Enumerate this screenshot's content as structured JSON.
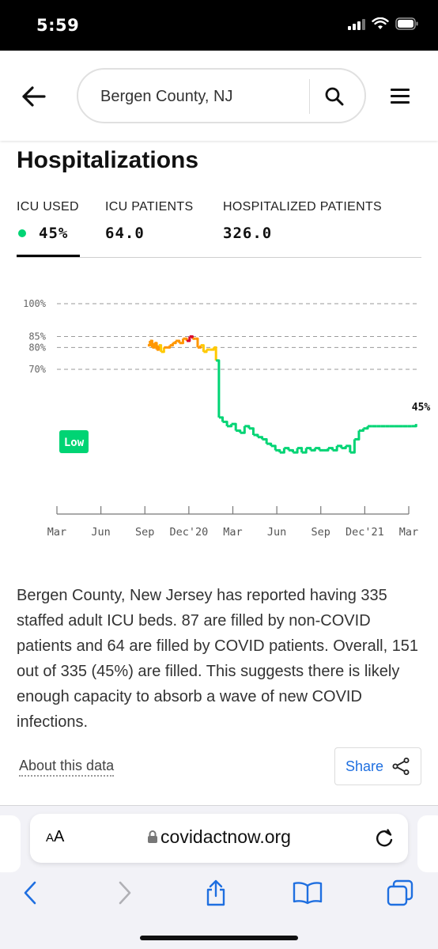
{
  "status_bar": {
    "time": "5:59"
  },
  "header": {
    "search_value": "Bergen County, NJ"
  },
  "section": {
    "title": "Hospitalizations",
    "metrics": [
      {
        "label": "ICU USED",
        "value": "45%",
        "status_color": "#00d474"
      },
      {
        "label": "ICU PATIENTS",
        "value": "64.0"
      },
      {
        "label": "HOSPITALIZED PATIENTS",
        "value": "326.0"
      }
    ]
  },
  "chart_data": {
    "type": "line",
    "title": "",
    "ylabel": "",
    "xlabel": "",
    "threshold_labels": [
      "100%",
      "85%",
      "80%",
      "70%"
    ],
    "thresholds": [
      100,
      85,
      80,
      70
    ],
    "x_tick_labels": [
      "Mar",
      "Jun",
      "Sep",
      "Dec'20",
      "Mar",
      "Jun",
      "Sep",
      "Dec'21",
      "Mar"
    ],
    "x_tick_months": [
      0,
      3,
      6,
      9,
      12,
      15,
      18,
      21,
      24
    ],
    "ylim": [
      30,
      100
    ],
    "level_badge": "Low",
    "end_label": "45%",
    "colors": {
      "low": "#00d474",
      "medium": "#ffc900",
      "high": "#ff9600",
      "critical": "#d9002c"
    },
    "series": [
      {
        "x": [
          6.2,
          6.35,
          6.5,
          6.65,
          6.8,
          6.95,
          7.1,
          7.3,
          7.5,
          7.7,
          7.9,
          8.1,
          8.35,
          8.6,
          8.85,
          9.05,
          9.25,
          9.45,
          9.6,
          9.8,
          10.0,
          10.2,
          10.45,
          10.7,
          10.85,
          11.05,
          11.3,
          11.6,
          11.9,
          12.2,
          12.5,
          12.8,
          13.1,
          13.4,
          13.7,
          14.0,
          14.3,
          14.6,
          14.9,
          15.2,
          15.5,
          15.8,
          16.1,
          16.4,
          16.7,
          17.0,
          17.3,
          17.6,
          17.9,
          18.2,
          18.5,
          18.8,
          19.1,
          19.4,
          19.7,
          20.0,
          20.3,
          20.6,
          20.9,
          21.2,
          21.5,
          21.8,
          22.1,
          22.4,
          22.7,
          23.0,
          23.3,
          23.6,
          23.9,
          24.2,
          24.5
        ],
        "y": [
          81,
          83,
          80,
          82,
          79,
          81,
          78,
          80,
          80,
          81,
          82,
          83,
          82,
          84,
          83,
          85,
          84,
          84,
          80,
          81,
          78,
          79,
          79,
          80,
          74,
          48,
          46,
          44,
          45,
          42,
          41,
          44,
          43,
          40,
          39,
          38,
          36,
          35,
          33,
          32,
          34,
          33,
          32,
          34,
          32,
          34,
          33,
          34,
          33,
          33,
          34,
          33,
          35,
          34,
          35,
          32,
          38,
          42,
          43,
          44,
          44,
          44,
          44,
          44,
          44,
          44,
          44,
          44,
          44,
          44,
          45
        ]
      }
    ]
  },
  "description": "Bergen County, New Jersey has reported having 335 staffed adult ICU beds. 87 are filled by non-COVID patients and 64 are filled by COVID patients. Overall, 151 out of 335 (45%) are filled. This suggests there is likely enough capacity to absorb a wave of new COVID infections.",
  "footer": {
    "about_link": "About this data",
    "share_label": "Share"
  },
  "browser": {
    "aa_small": "A",
    "aa_big": "A",
    "url": "covidactnow.org"
  }
}
